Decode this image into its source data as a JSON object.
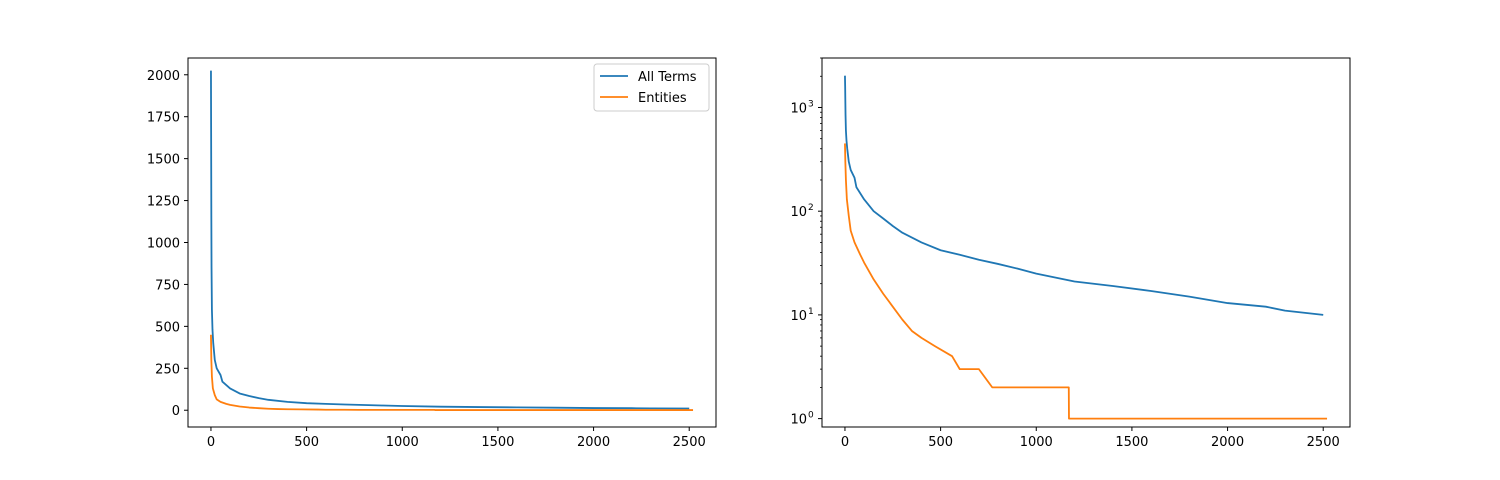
{
  "chart_data": [
    {
      "type": "line",
      "title": "",
      "xlabel": "",
      "ylabel": "",
      "xlim": [
        -120,
        2640
      ],
      "ylim": [
        -100,
        2100
      ],
      "yscale": "linear",
      "xticks": [
        0,
        500,
        1000,
        1500,
        2000,
        2500
      ],
      "yticks": [
        0,
        250,
        500,
        750,
        1000,
        1250,
        1500,
        1750,
        2000
      ],
      "legend": "top-right",
      "grid": false,
      "series": [
        {
          "name": "All Terms",
          "color": "#1f77b4",
          "points": [
            [
              0,
              2025
            ],
            [
              1,
              1600
            ],
            [
              2,
              1150
            ],
            [
              3,
              850
            ],
            [
              5,
              600
            ],
            [
              8,
              480
            ],
            [
              12,
              400
            ],
            [
              20,
              300
            ],
            [
              30,
              250
            ],
            [
              50,
              210
            ],
            [
              60,
              170
            ],
            [
              100,
              130
            ],
            [
              150,
              100
            ],
            [
              200,
              85
            ],
            [
              250,
              72
            ],
            [
              300,
              62
            ],
            [
              400,
              50
            ],
            [
              500,
              42
            ],
            [
              600,
              38
            ],
            [
              700,
              34
            ],
            [
              800,
              31
            ],
            [
              900,
              28
            ],
            [
              1000,
              25
            ],
            [
              1200,
              21
            ],
            [
              1400,
              19
            ],
            [
              1600,
              17
            ],
            [
              1800,
              15
            ],
            [
              2000,
              13
            ],
            [
              2200,
              12
            ],
            [
              2300,
              11
            ],
            [
              2500,
              10
            ]
          ]
        },
        {
          "name": "Entities",
          "color": "#ff7f0e",
          "points": [
            [
              0,
              450
            ],
            [
              2,
              300
            ],
            [
              5,
              200
            ],
            [
              10,
              130
            ],
            [
              20,
              90
            ],
            [
              30,
              65
            ],
            [
              50,
              50
            ],
            [
              80,
              38
            ],
            [
              100,
              32
            ],
            [
              150,
              22
            ],
            [
              200,
              16
            ],
            [
              250,
              12
            ],
            [
              300,
              9
            ],
            [
              350,
              7
            ],
            [
              400,
              6
            ],
            [
              470,
              5
            ],
            [
              560,
              4
            ],
            [
              600,
              3
            ],
            [
              700,
              3
            ],
            [
              770,
              2
            ],
            [
              1000,
              2
            ],
            [
              1170,
              2
            ],
            [
              1171,
              1
            ],
            [
              1500,
              1
            ],
            [
              2000,
              1
            ],
            [
              2520,
              1
            ]
          ]
        }
      ]
    },
    {
      "type": "line",
      "title": "",
      "xlabel": "",
      "ylabel": "",
      "xlim": [
        -120,
        2640
      ],
      "ylim": [
        0.83,
        3000
      ],
      "yscale": "log",
      "xticks": [
        0,
        500,
        1000,
        1500,
        2000,
        2500
      ],
      "yticks": [
        1,
        10,
        100,
        1000
      ],
      "ytick_labels": [
        "10",
        "10",
        "10",
        "10"
      ],
      "ytick_exponents": [
        "0",
        "1",
        "2",
        "3"
      ],
      "grid": false,
      "series": [
        {
          "name": "All Terms",
          "color": "#1f77b4",
          "points": [
            [
              0,
              2025
            ],
            [
              1,
              1600
            ],
            [
              2,
              1150
            ],
            [
              3,
              850
            ],
            [
              5,
              600
            ],
            [
              8,
              480
            ],
            [
              12,
              400
            ],
            [
              20,
              300
            ],
            [
              30,
              250
            ],
            [
              50,
              210
            ],
            [
              60,
              170
            ],
            [
              100,
              130
            ],
            [
              150,
              100
            ],
            [
              200,
              85
            ],
            [
              250,
              72
            ],
            [
              300,
              62
            ],
            [
              400,
              50
            ],
            [
              500,
              42
            ],
            [
              600,
              38
            ],
            [
              700,
              34
            ],
            [
              800,
              31
            ],
            [
              900,
              28
            ],
            [
              1000,
              25
            ],
            [
              1200,
              21
            ],
            [
              1400,
              19
            ],
            [
              1600,
              17
            ],
            [
              1800,
              15
            ],
            [
              2000,
              13
            ],
            [
              2200,
              12
            ],
            [
              2300,
              11
            ],
            [
              2500,
              10
            ]
          ]
        },
        {
          "name": "Entities",
          "color": "#ff7f0e",
          "points": [
            [
              0,
              450
            ],
            [
              2,
              300
            ],
            [
              5,
              200
            ],
            [
              10,
              130
            ],
            [
              20,
              90
            ],
            [
              30,
              65
            ],
            [
              50,
              50
            ],
            [
              80,
              38
            ],
            [
              100,
              32
            ],
            [
              150,
              22
            ],
            [
              200,
              16
            ],
            [
              250,
              12
            ],
            [
              300,
              9
            ],
            [
              350,
              7
            ],
            [
              400,
              6
            ],
            [
              470,
              5
            ],
            [
              560,
              4
            ],
            [
              600,
              3
            ],
            [
              700,
              3
            ],
            [
              770,
              2
            ],
            [
              1000,
              2
            ],
            [
              1170,
              2
            ],
            [
              1171,
              1
            ],
            [
              1500,
              1
            ],
            [
              2000,
              1
            ],
            [
              2520,
              1
            ]
          ]
        }
      ]
    }
  ]
}
